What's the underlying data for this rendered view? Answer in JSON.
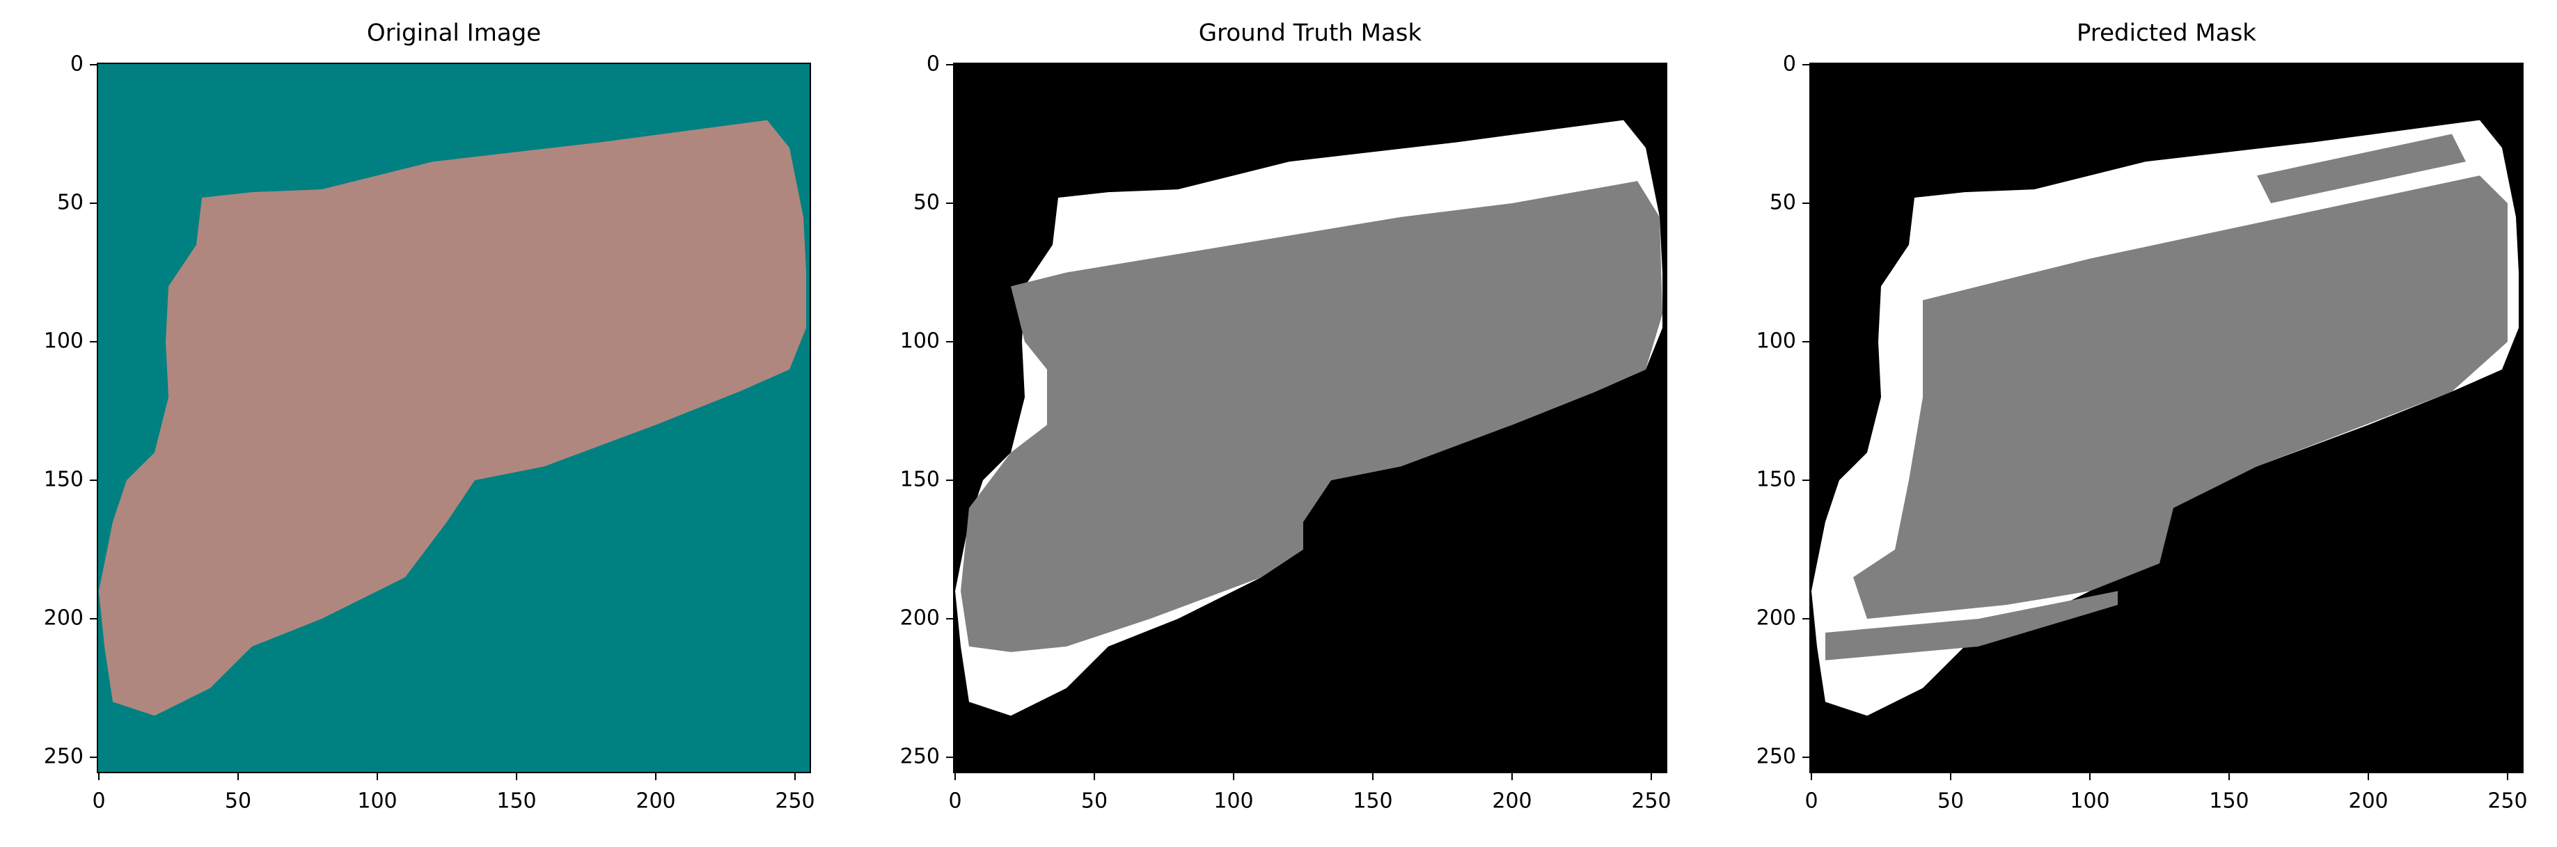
{
  "chart_data": [
    {
      "type": "image",
      "title": "Original Image",
      "xlim": [
        -0.5,
        255.5
      ],
      "ylim": [
        255.5,
        -0.5
      ],
      "xticks": [
        0,
        50,
        100,
        150,
        200,
        250
      ],
      "yticks": [
        0,
        50,
        100,
        150,
        200,
        250
      ]
    },
    {
      "type": "image",
      "title": "Ground Truth Mask",
      "xlim": [
        -0.5,
        255.5
      ],
      "ylim": [
        255.5,
        -0.5
      ],
      "xticks": [
        0,
        50,
        100,
        150,
        200,
        250
      ],
      "yticks": [
        0,
        50,
        100,
        150,
        200,
        250
      ]
    },
    {
      "type": "image",
      "title": "Predicted Mask",
      "xlim": [
        -0.5,
        255.5
      ],
      "ylim": [
        255.5,
        -0.5
      ],
      "xticks": [
        0,
        50,
        100,
        150,
        200,
        250
      ],
      "yticks": [
        0,
        50,
        100,
        150,
        200,
        250
      ]
    }
  ]
}
